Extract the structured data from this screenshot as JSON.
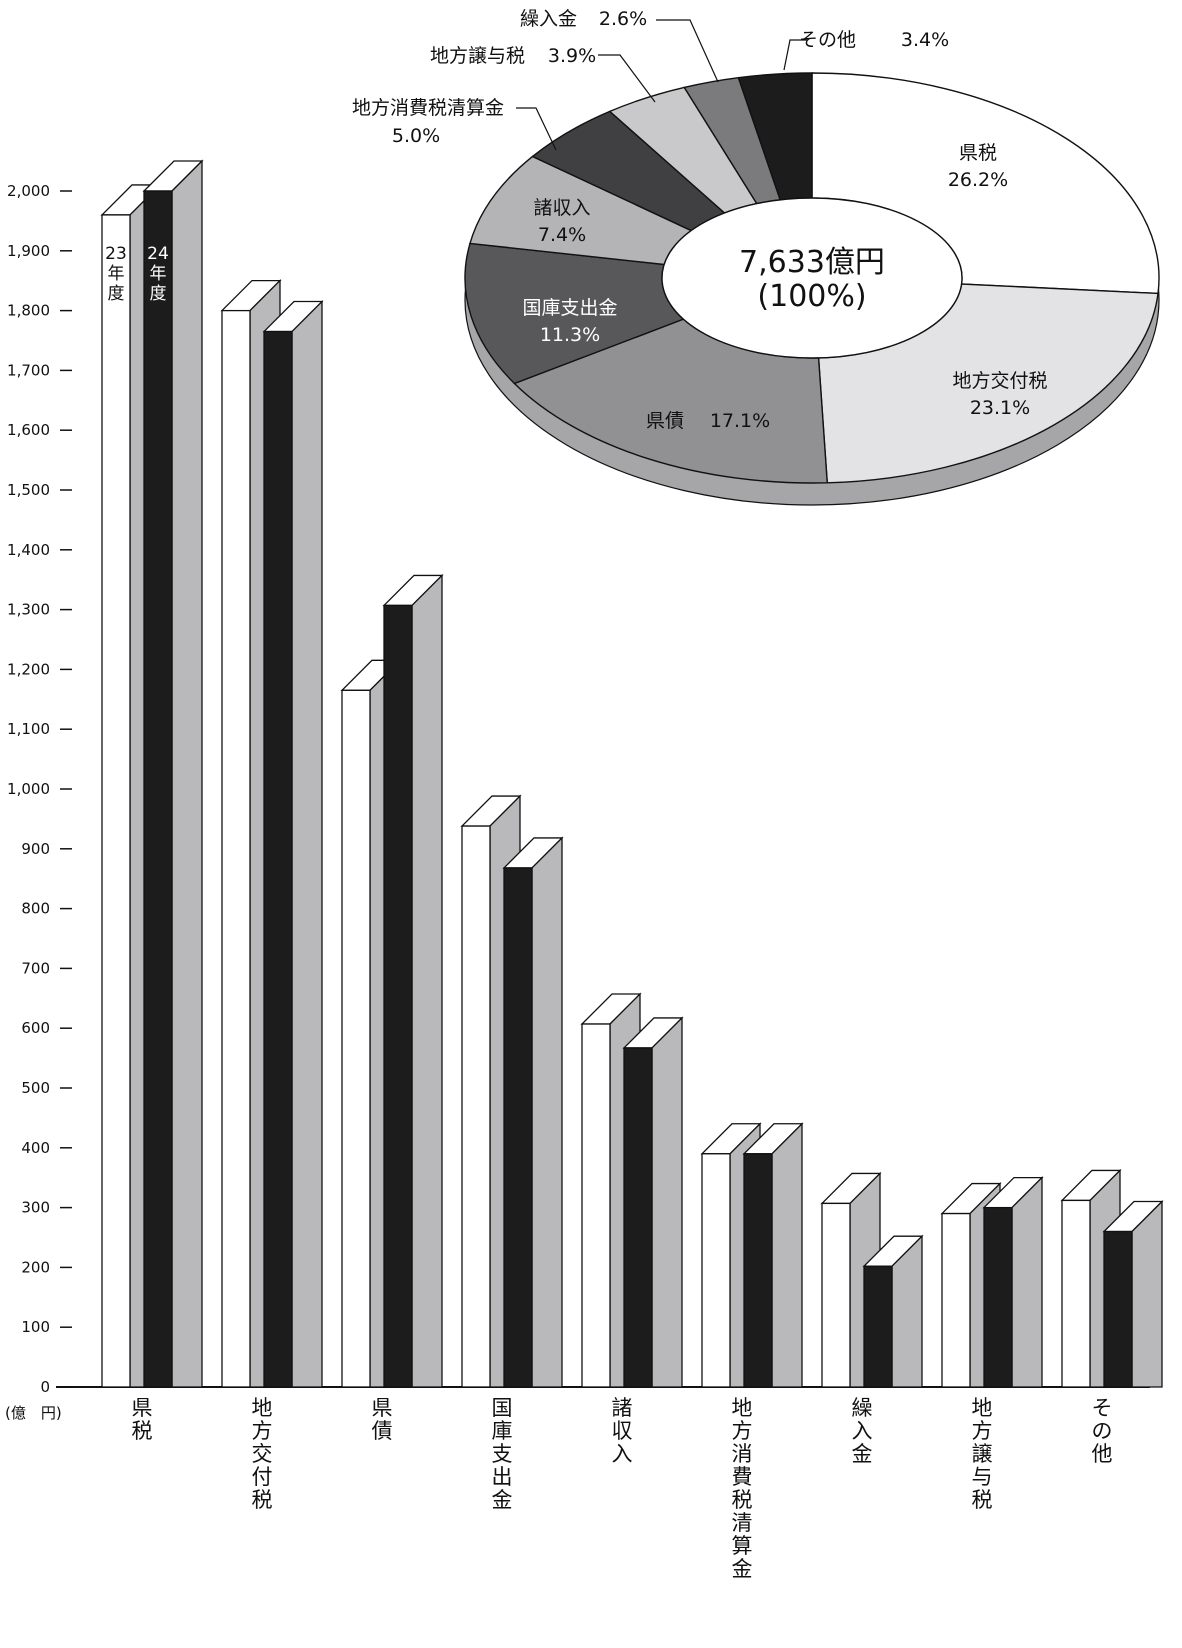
{
  "chart_data": [
    {
      "type": "bar",
      "ylabel": "(億　円)",
      "ylim": [
        0,
        2000
      ],
      "yticks": [
        0,
        100,
        200,
        300,
        400,
        500,
        600,
        700,
        800,
        900,
        1000,
        1100,
        1200,
        1300,
        1400,
        1500,
        1600,
        1700,
        1800,
        1900,
        2000
      ],
      "ytick_labels": [
        "0",
        "100",
        "200",
        "300",
        "400",
        "500",
        "600",
        "700",
        "800",
        "900",
        "1,000",
        "1,100",
        "1,200",
        "1,300",
        "1,400",
        "1,500",
        "1,600",
        "1,700",
        "1,800",
        "1,900",
        "2,000"
      ],
      "categories": [
        "県税",
        "地方交付税",
        "県債",
        "国庫支出金",
        "諸収入",
        "地方消費税清算金",
        "繰入金",
        "地方譲与税",
        "その他"
      ],
      "series": [
        {
          "name": "23年度",
          "color": "#ffffff",
          "values": [
            1960,
            1800,
            1165,
            938,
            607,
            390,
            307,
            290,
            312
          ]
        },
        {
          "name": "24年度",
          "color": "#1c1c1c",
          "values": [
            2000,
            1765,
            1307,
            868,
            567,
            390,
            202,
            300,
            260
          ]
        }
      ],
      "series_labels": [
        [
          "23",
          "年",
          "度"
        ],
        [
          "24",
          "年",
          "度"
        ]
      ]
    },
    {
      "type": "pie",
      "center_label": [
        "7,633億円",
        "(100%)"
      ],
      "slices": [
        {
          "label": "県税",
          "value": 26.2,
          "value_text": "26.2%",
          "color": "#ffffff"
        },
        {
          "label": "地方交付税",
          "value": 23.1,
          "value_text": "23.1%",
          "color": "#e3e3e5"
        },
        {
          "label": "県債",
          "value": 17.1,
          "value_text": "17.1%",
          "color": "#919194"
        },
        {
          "label": "国庫支出金",
          "value": 11.3,
          "value_text": "11.3%",
          "color": "#58585b"
        },
        {
          "label": "諸収入",
          "value": 7.4,
          "value_text": "7.4%",
          "color": "#b4b4b7"
        },
        {
          "label": "地方消費税清算金",
          "value": 5.0,
          "value_text": "5.0%",
          "color": "#404043"
        },
        {
          "label": "地方譲与税",
          "value": 3.9,
          "value_text": "3.9%",
          "color": "#c9c9cc"
        },
        {
          "label": "繰入金",
          "value": 2.6,
          "value_text": "2.6%",
          "color": "#7b7b7e"
        },
        {
          "label": "その他",
          "value": 3.4,
          "value_text": "3.4%",
          "color": "#1c1c1c"
        }
      ]
    }
  ]
}
